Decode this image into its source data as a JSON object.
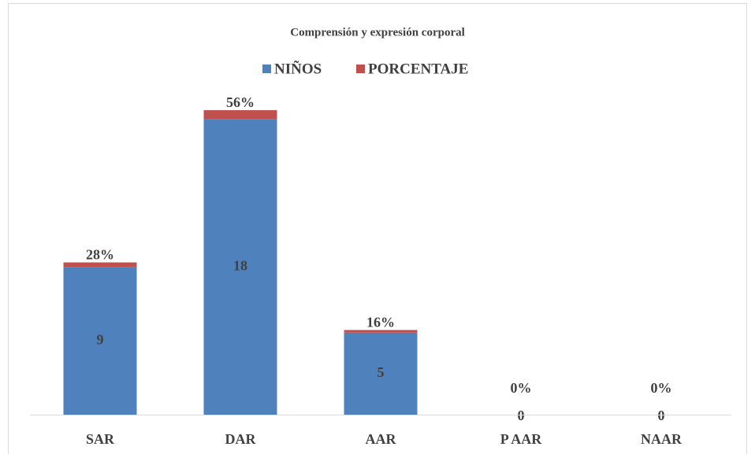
{
  "chart_data": {
    "type": "stacked_bar",
    "title": "Comprensión y expresión corporal",
    "categories": [
      "SAR",
      "DAR",
      "AAR",
      "P AAR",
      "NAAR"
    ],
    "series": [
      {
        "name": "NIÑOS",
        "color": "#4f81bd",
        "values": [
          9,
          18,
          5,
          0,
          0
        ]
      },
      {
        "name": "PORCENTAJE",
        "color": "#c0504d",
        "values": [
          0.28,
          0.56,
          0.16,
          0,
          0
        ],
        "value_labels": [
          "28%",
          "56%",
          "16%",
          "0%",
          "0%"
        ]
      }
    ],
    "ylim": [
      0,
      20
    ],
    "legend": "top"
  }
}
